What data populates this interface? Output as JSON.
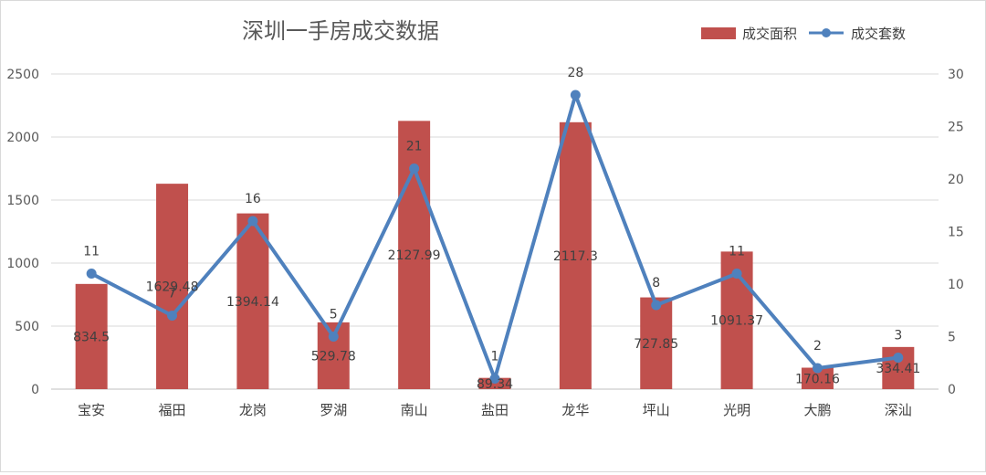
{
  "chart_data": {
    "type": "bar",
    "title": "深圳一手房成交数据",
    "categories": [
      "宝安",
      "福田",
      "龙岗",
      "罗湖",
      "南山",
      "盐田",
      "龙华",
      "坪山",
      "光明",
      "大鹏",
      "深汕"
    ],
    "series": [
      {
        "name": "成交面积",
        "type": "bar",
        "axis": "left",
        "color": "#c0504d",
        "values": [
          834.5,
          1629.48,
          1394.14,
          529.78,
          2127.99,
          89.34,
          2117.3,
          727.85,
          1091.37,
          170.16,
          334.41
        ]
      },
      {
        "name": "成交套数",
        "type": "line",
        "axis": "right",
        "color": "#4f81bd",
        "values": [
          11,
          7,
          16,
          5,
          21,
          1,
          28,
          8,
          11,
          2,
          3
        ]
      }
    ],
    "y_left": {
      "min": 0,
      "max": 2500,
      "ticks": [
        0,
        500,
        1000,
        1500,
        2000,
        2500
      ]
    },
    "y_right": {
      "min": 0,
      "max": 30,
      "ticks": [
        0,
        5,
        10,
        15,
        20,
        25,
        30
      ]
    },
    "grid": true,
    "legend": "top-right",
    "data_labels": true
  }
}
